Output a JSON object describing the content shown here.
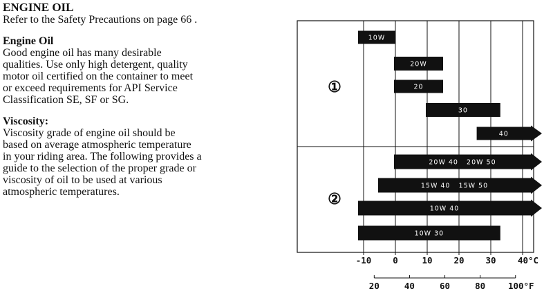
{
  "document": {
    "title": "ENGINE OIL",
    "intro": "Refer to the Safety Precautions on page 66 .",
    "sections": [
      {
        "heading": "Engine Oil",
        "lines": [
          "Good engine oil has many desirable",
          "qualities. Use only high detergent, quality",
          "motor oil certified on the container to meet",
          "or exceed requirements for API Service",
          "Classification SE, SF or SG."
        ]
      },
      {
        "heading": "Viscosity:",
        "lines": [
          "Viscosity grade of engine oil should be",
          "based on average atmospheric temperature",
          "in your riding area. The following provides a",
          "guide to the selection of the proper grade or",
          "viscosity of oil to be used at various",
          "atmospheric temperatures."
        ]
      }
    ]
  },
  "chart_data": {
    "type": "bar",
    "orientation": "horizontal-range",
    "groups": [
      {
        "label": "①",
        "bars": [
          {
            "label": "10W",
            "from": -10,
            "to": 0,
            "arrow": false
          },
          {
            "label": "20W",
            "from": 0,
            "to": 15,
            "arrow": false
          },
          {
            "label": "20",
            "from": 0,
            "to": 15,
            "arrow": false
          },
          {
            "label": "30",
            "from": 10,
            "to": 33,
            "arrow": false
          },
          {
            "label": "40",
            "from": 26,
            "to": 40,
            "arrow": true
          }
        ]
      },
      {
        "label": "②",
        "bars": [
          {
            "label": "20W 40   20W 50",
            "from": 0,
            "to": 40,
            "arrow": true
          },
          {
            "label": "15W 40   15W 50",
            "from": -5,
            "to": 40,
            "arrow": true
          },
          {
            "label": "10W 40",
            "from": -10,
            "to": 40,
            "arrow": true
          },
          {
            "label": "10W 30",
            "from": -10,
            "to": 33,
            "arrow": false
          }
        ]
      }
    ],
    "celsius_ticks": [
      "-10",
      "0",
      "10",
      "20",
      "30",
      "40°C"
    ],
    "celsius_values": [
      -10,
      0,
      10,
      20,
      30,
      40
    ],
    "fahrenheit_ticks": [
      "20",
      "40",
      "60",
      "80",
      "100°F"
    ],
    "fahrenheit_values": [
      20,
      40,
      60,
      80,
      100
    ],
    "xlim": [
      -10,
      40
    ],
    "grid": true,
    "bar_color": "#111111",
    "bar_text_color": "#ffffff"
  }
}
